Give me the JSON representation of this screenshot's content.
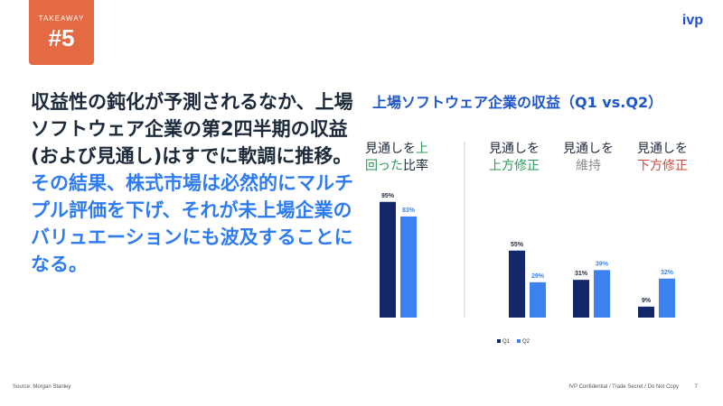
{
  "badge": {
    "label": "TAKEAWAY",
    "number": "#5"
  },
  "logo": "ivp",
  "headline": {
    "dark": "収益性の鈍化が予測されるなか、上場ソフトウェア企業の第2四半期の収益(および見通し)はすでに軟調に推移。",
    "blue": "その結果、株式市場は必然的にマルチプル評価を下げ、それが未上場企業のバリュエーションにも波及することになる。"
  },
  "sections": {
    "left": {
      "line1a": "見通しを",
      "line1b": "上",
      "line2a": "回った",
      "line2b": "比率"
    },
    "upward": {
      "line1": "見通しを",
      "line2": "上方修正"
    },
    "maintain": {
      "line1": "見通しを",
      "line2": "維持"
    },
    "downward": {
      "line1": "見通しを",
      "line2": "下方修正"
    }
  },
  "chart_data": {
    "type": "bar",
    "title": "上場ソフトウェア企業の収益（Q1 vs.Q2）",
    "categories": [
      "見通しを上回った比率",
      "見通しを上方修正",
      "見通しを維持",
      "見通しを下方修正"
    ],
    "series": [
      {
        "name": "Q1",
        "values": [
          95,
          55,
          31,
          9
        ],
        "labels": [
          "95%",
          "55%",
          "31%",
          "9%"
        ]
      },
      {
        "name": "Q2",
        "values": [
          83,
          29,
          39,
          32
        ],
        "labels": [
          "83%",
          "29%",
          "39%",
          "32%"
        ]
      }
    ],
    "ylim": [
      0,
      100
    ],
    "colors": {
      "Q1": "#13286b",
      "Q2": "#3b82f0"
    },
    "legend": "bottom"
  },
  "footer": {
    "source": "Source: Morgan Stanley",
    "right": "IVP Confidential  /  Trade Secret  /  Do Not Copy",
    "page": "7"
  }
}
